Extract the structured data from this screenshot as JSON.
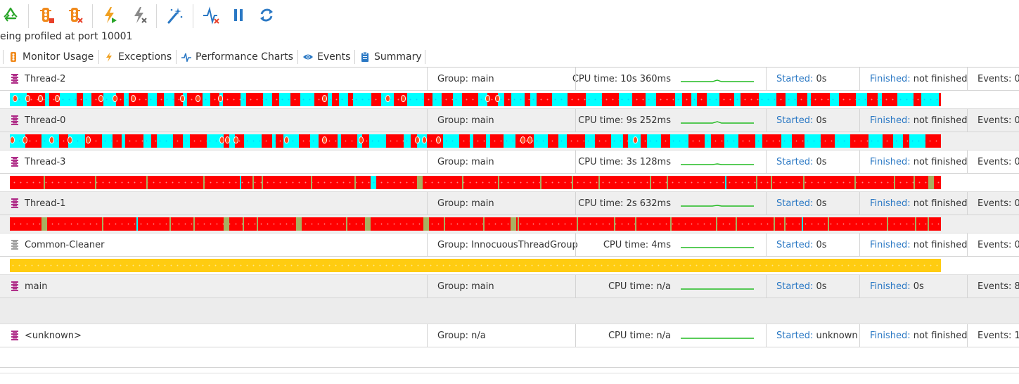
{
  "toolbar": {
    "buttons": [
      {
        "icon": "recycle-icon",
        "color": "#2aa52a"
      },
      {
        "icon": "traffic-light-stop-icon",
        "color": "#f08a1c"
      },
      {
        "icon": "traffic-light-remove-icon",
        "color": "#f08a1c"
      },
      {
        "icon": "lightning-run-icon",
        "color": "#f0a020"
      },
      {
        "icon": "lightning-remove-icon",
        "color": "#8a8a8a"
      },
      {
        "icon": "magic-wand-icon",
        "color": "#2a78c4"
      },
      {
        "icon": "pulse-remove-icon",
        "color": "#2a78c4"
      },
      {
        "icon": "pause-icon",
        "color": "#2a78c4"
      },
      {
        "icon": "refresh-icon",
        "color": "#2a78c4"
      }
    ]
  },
  "status_text": "eing profiled at port 10001",
  "tabs": [
    {
      "label": "Monitor Usage",
      "icon": "traffic-light-icon",
      "color": "#f08a1c"
    },
    {
      "label": "Exceptions",
      "icon": "lightning-icon",
      "color": "#f0a020"
    },
    {
      "label": "Performance Charts",
      "icon": "pulse-icon",
      "color": "#2a78c4"
    },
    {
      "label": "Events",
      "icon": "eye-icon",
      "color": "#2a78c4"
    },
    {
      "label": "Summary",
      "icon": "clipboard-icon",
      "color": "#2a78c4"
    }
  ],
  "labels": {
    "cpu_prefix": "CPU time: ",
    "group_prefix": "Group: ",
    "started": "Started:",
    "finished": "Finished:",
    "events": "Events:"
  },
  "colors": {
    "running": "#ff0000",
    "waiting": "#00ffff",
    "blocked": "#a8b060",
    "sleeping": "#ffcc11",
    "sparkline": "#22bb22",
    "label_blue": "#2a78c4",
    "thread_icon_active": "#b0308a",
    "thread_icon_system": "#a0a0a0"
  },
  "threads": [
    {
      "name": "Thread-2",
      "icon": "thread-icon",
      "group": "main",
      "cpu": "10s 360ms",
      "started": "0s",
      "finished": "not finished",
      "events": "0",
      "bar": "mixed-cyan-red-1",
      "spark": "small-bump"
    },
    {
      "name": "Thread-0",
      "icon": "thread-icon",
      "group": "main",
      "cpu": "9s 252ms",
      "started": "0s",
      "finished": "not finished",
      "events": "0",
      "bar": "mixed-cyan-red-2",
      "spark": "small-bump"
    },
    {
      "name": "Thread-3",
      "icon": "thread-icon",
      "group": "main",
      "cpu": "3s 128ms",
      "started": "0s",
      "finished": "not finished",
      "events": "0",
      "bar": "mostly-red-1",
      "spark": "tiny-bump"
    },
    {
      "name": "Thread-1",
      "icon": "thread-icon",
      "group": "main",
      "cpu": "2s 632ms",
      "started": "0s",
      "finished": "not finished",
      "events": "0",
      "bar": "mostly-red-2",
      "spark": "tiny-bump"
    },
    {
      "name": "Common-Cleaner",
      "icon": "thread-icon-system",
      "group": "InnocuousThreadGroup",
      "cpu": "4ms",
      "started": "0s",
      "finished": "not finished",
      "events": "0",
      "bar": "yellow",
      "spark": "flat"
    },
    {
      "name": "main",
      "icon": "thread-icon",
      "group": "main",
      "cpu": "n/a",
      "started": "0s",
      "finished": "0s",
      "events": "8",
      "bar": "none",
      "spark": "flat"
    },
    {
      "name": "<unknown>",
      "icon": "thread-icon",
      "group": "n/a",
      "cpu": "n/a",
      "started": "unknown",
      "finished": "not finished",
      "events": "1",
      "bar": "none-tall",
      "spark": "flat"
    }
  ]
}
